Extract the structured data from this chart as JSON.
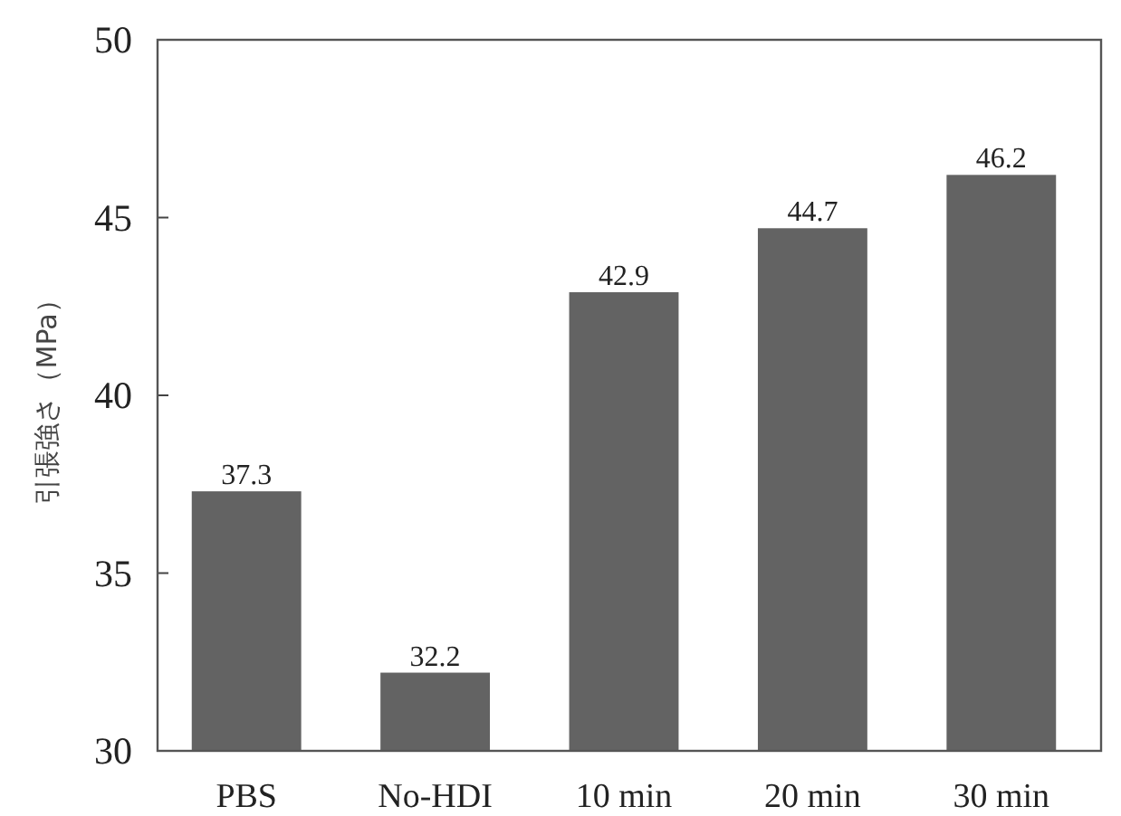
{
  "chart_data": {
    "type": "bar",
    "ylabel": "引張強さ（MPa）",
    "categories": [
      "PBS",
      "No-HDI",
      "10 min",
      "20 min",
      "30 min"
    ],
    "values": [
      37.3,
      32.2,
      42.9,
      44.7,
      46.2
    ],
    "color": "#636363",
    "ylim": [
      30,
      50
    ],
    "yticks": [
      30,
      35,
      40,
      45,
      50
    ],
    "data_labels": true,
    "grid": false
  }
}
